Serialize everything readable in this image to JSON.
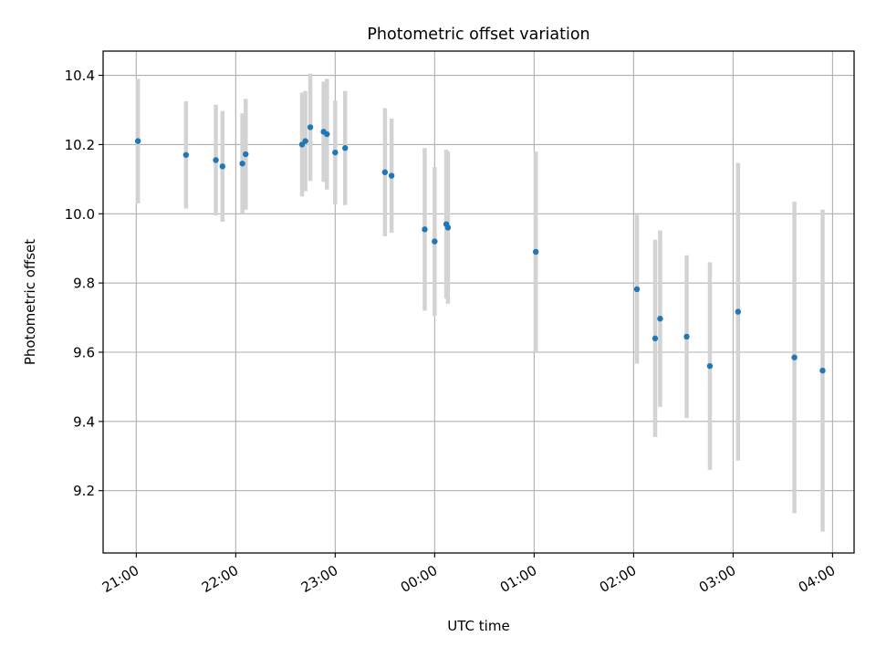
{
  "chart_data": {
    "type": "scatter",
    "title": "Photometric offset variation",
    "xlabel": "UTC time",
    "ylabel": "Photometric offset",
    "x_tick_labels": [
      "21:00",
      "22:00",
      "23:00",
      "00:00",
      "01:00",
      "02:00",
      "03:00",
      "04:00"
    ],
    "y_ticks": [
      9.2,
      9.4,
      9.6,
      9.8,
      10.0,
      10.2,
      10.4
    ],
    "y_tick_labels": [
      "9.2",
      "9.4",
      "9.6",
      "9.8",
      "10.0",
      "10.2",
      "10.4"
    ],
    "xlim": [
      "20:40",
      "04:13"
    ],
    "ylim": [
      9.02,
      10.47
    ],
    "grid": true,
    "legend": false,
    "point_color": "#1f77b4",
    "errorbar_color": "#d3d3d3",
    "points": [
      {
        "x": "21:01",
        "y": 10.21,
        "yerr": 0.18
      },
      {
        "x": "21:30",
        "y": 10.17,
        "yerr": 0.155
      },
      {
        "x": "21:48",
        "y": 10.155,
        "yerr": 0.16
      },
      {
        "x": "21:52",
        "y": 10.137,
        "yerr": 0.16
      },
      {
        "x": "22:04",
        "y": 10.145,
        "yerr": 0.145
      },
      {
        "x": "22:06",
        "y": 10.172,
        "yerr": 0.16
      },
      {
        "x": "22:40",
        "y": 10.2,
        "yerr": 0.15
      },
      {
        "x": "22:42",
        "y": 10.21,
        "yerr": 0.145
      },
      {
        "x": "22:45",
        "y": 10.25,
        "yerr": 0.155
      },
      {
        "x": "22:53",
        "y": 10.237,
        "yerr": 0.145
      },
      {
        "x": "22:55",
        "y": 10.23,
        "yerr": 0.16
      },
      {
        "x": "23:00",
        "y": 10.177,
        "yerr": 0.15
      },
      {
        "x": "23:06",
        "y": 10.19,
        "yerr": 0.165
      },
      {
        "x": "23:30",
        "y": 10.12,
        "yerr": 0.185
      },
      {
        "x": "23:34",
        "y": 10.11,
        "yerr": 0.165
      },
      {
        "x": "23:54",
        "y": 9.955,
        "yerr": 0.235
      },
      {
        "x": "00:00",
        "y": 9.92,
        "yerr": 0.215
      },
      {
        "x": "00:07",
        "y": 9.97,
        "yerr": 0.215
      },
      {
        "x": "00:08",
        "y": 9.96,
        "yerr": 0.22
      },
      {
        "x": "01:01",
        "y": 9.89,
        "yerr": 0.29
      },
      {
        "x": "02:02",
        "y": 9.782,
        "yerr": 0.215
      },
      {
        "x": "02:13",
        "y": 9.64,
        "yerr": 0.285
      },
      {
        "x": "02:16",
        "y": 9.697,
        "yerr": 0.255
      },
      {
        "x": "02:32",
        "y": 9.645,
        "yerr": 0.235
      },
      {
        "x": "02:46",
        "y": 9.56,
        "yerr": 0.3
      },
      {
        "x": "03:03",
        "y": 9.717,
        "yerr": 0.43
      },
      {
        "x": "03:37",
        "y": 9.585,
        "yerr": 0.45
      },
      {
        "x": "03:54",
        "y": 9.547,
        "yerr": 0.465
      }
    ]
  }
}
